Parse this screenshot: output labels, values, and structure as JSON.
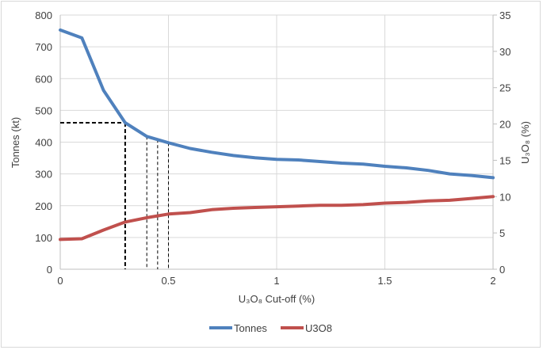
{
  "chart_data": {
    "type": "line",
    "title": "",
    "xlabel": "U₃O₈ Cut-off (%)",
    "ylabel": "Tonnes (kt)",
    "y2label": "U₃O₈ (%)",
    "xlim": [
      0,
      2
    ],
    "ylim": [
      0,
      800
    ],
    "y2lim": [
      0,
      35
    ],
    "x_ticks": [
      "0",
      "0.5",
      "1",
      "1.5",
      "2"
    ],
    "y_ticks": [
      "0",
      "100",
      "200",
      "300",
      "400",
      "500",
      "600",
      "700",
      "800"
    ],
    "y2_ticks": [
      "0",
      "5",
      "10",
      "15",
      "20",
      "25",
      "30",
      "35"
    ],
    "grid": true,
    "legend_position": "bottom",
    "x": [
      0,
      0.1,
      0.2,
      0.3,
      0.4,
      0.45,
      0.5,
      0.6,
      0.7,
      0.8,
      0.9,
      1.0,
      1.1,
      1.2,
      1.3,
      1.4,
      1.5,
      1.6,
      1.7,
      1.8,
      1.9,
      2.0
    ],
    "series": [
      {
        "name": "Tonnes",
        "axis": "left",
        "color": "#4f81bd",
        "values": [
          753,
          728,
          563,
          461,
          418,
          408,
          398,
          380,
          368,
          358,
          351,
          346,
          344,
          339,
          334,
          331,
          324,
          319,
          311,
          300,
          295,
          288
        ]
      },
      {
        "name": "U3O8",
        "axis": "right",
        "color": "#c0504d",
        "values": [
          4.1,
          4.2,
          5.4,
          6.5,
          7.1,
          7.35,
          7.6,
          7.8,
          8.2,
          8.4,
          8.5,
          8.6,
          8.7,
          8.8,
          8.8,
          8.9,
          9.1,
          9.2,
          9.4,
          9.5,
          9.75,
          10.0
        ]
      }
    ],
    "annotations": [
      {
        "type": "dashed-guide",
        "x": 0.3,
        "y": 461,
        "horizontal": true,
        "weight": "bold"
      },
      {
        "type": "dashed-guide",
        "x": 0.4,
        "y": 418,
        "horizontal": false,
        "weight": "thin"
      },
      {
        "type": "dashed-guide",
        "x": 0.45,
        "y": 408,
        "horizontal": false,
        "weight": "thin"
      },
      {
        "type": "dashed-guide",
        "x": 0.5,
        "y": 398,
        "horizontal": false,
        "weight": "thin"
      }
    ]
  }
}
